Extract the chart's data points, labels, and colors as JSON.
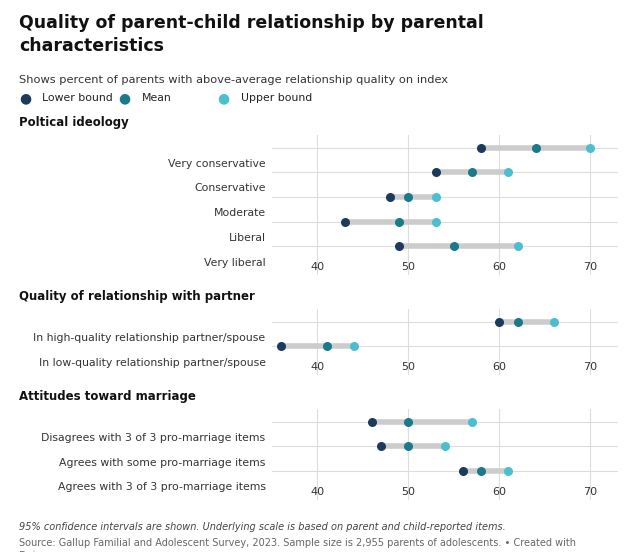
{
  "title": "Quality of parent-child relationship by parental\ncharacteristics",
  "subtitle": "Shows percent of parents with above-average relationship quality on index",
  "footnote": "95% confidence intervals are shown. Underlying scale is based on parent and child-reported items.",
  "source": "Source: Gallup Familial and Adolescent Survey, 2023. Sample size is 2,955 parents of adolescents. • Created with\nDatawrapper",
  "color_lower": "#1b3a5c",
  "color_mean": "#1a7a8a",
  "color_upper": "#4bbfcf",
  "color_line": "#cccccc",
  "sections": [
    {
      "header": "Poltical ideology",
      "rows": [
        {
          "label": "Very conservative",
          "lower": 58,
          "mean": 64,
          "upper": 70
        },
        {
          "label": "Conservative",
          "lower": 53,
          "mean": 57,
          "upper": 61
        },
        {
          "label": "Moderate",
          "lower": 48,
          "mean": 50,
          "upper": 53
        },
        {
          "label": "Liberal",
          "lower": 43,
          "mean": 49,
          "upper": 53
        },
        {
          "label": "Very liberal",
          "lower": 49,
          "mean": 55,
          "upper": 62
        }
      ]
    },
    {
      "header": "Quality of relationship with partner",
      "rows": [
        {
          "label": "In high-quality relationship partner/spouse",
          "lower": 60,
          "mean": 62,
          "upper": 66
        },
        {
          "label": "In low-quality relationship partner/spouse",
          "lower": 36,
          "mean": 41,
          "upper": 44
        }
      ]
    },
    {
      "header": "Attitudes toward marriage",
      "rows": [
        {
          "label": "Disagrees with 3 of 3 pro-marriage items",
          "lower": 46,
          "mean": 50,
          "upper": 57
        },
        {
          "label": "Agrees with some pro-marriage items",
          "lower": 47,
          "mean": 50,
          "upper": 54
        },
        {
          "label": "Agrees with 3 of 3 pro-marriage items",
          "lower": 56,
          "mean": 58,
          "upper": 61
        }
      ]
    }
  ],
  "xlim": [
    35,
    73
  ],
  "xticks": [
    40,
    50,
    60,
    70
  ],
  "legend_items": [
    {
      "label": "Lower bound",
      "color": "#1b3a5c"
    },
    {
      "label": "Mean",
      "color": "#1a7a8a"
    },
    {
      "label": "Upper bound",
      "color": "#4bbfcf"
    }
  ]
}
